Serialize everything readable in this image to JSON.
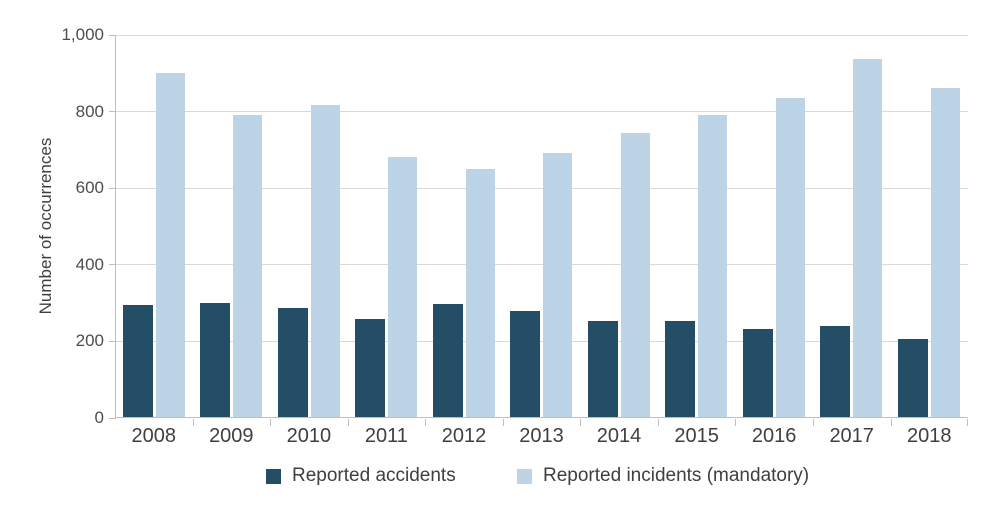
{
  "chart_data": {
    "type": "bar",
    "title": "",
    "categories": [
      "2008",
      "2009",
      "2010",
      "2011",
      "2012",
      "2013",
      "2014",
      "2015",
      "2016",
      "2017",
      "2018"
    ],
    "series": [
      {
        "name": "Reported accidents",
        "color": "#234e66",
        "values": [
          293,
          299,
          286,
          256,
          294,
          276,
          251,
          251,
          229,
          239,
          203
        ]
      },
      {
        "name": "Reported incidents (mandatory)",
        "color": "#bdd3e6",
        "values": [
          897,
          788,
          815,
          678,
          648,
          690,
          742,
          788,
          832,
          935,
          860
        ]
      }
    ],
    "xlabel": "",
    "ylabel": "Number of occurrences",
    "ylim": [
      0,
      1000
    ],
    "yticks": [
      0,
      200,
      400,
      600,
      800,
      1000
    ],
    "ytick_labels": [
      "0",
      "200",
      "400",
      "600",
      "800",
      "1,000"
    ],
    "grid": true,
    "legend_position": "bottom-center"
  },
  "style": {
    "background": "#ffffff",
    "gridline_color": "#d9d9d9",
    "axis_color": "#bfbfbf",
    "label_color": "#3f3f3f",
    "tick_label_color": "#4d4d4d"
  }
}
